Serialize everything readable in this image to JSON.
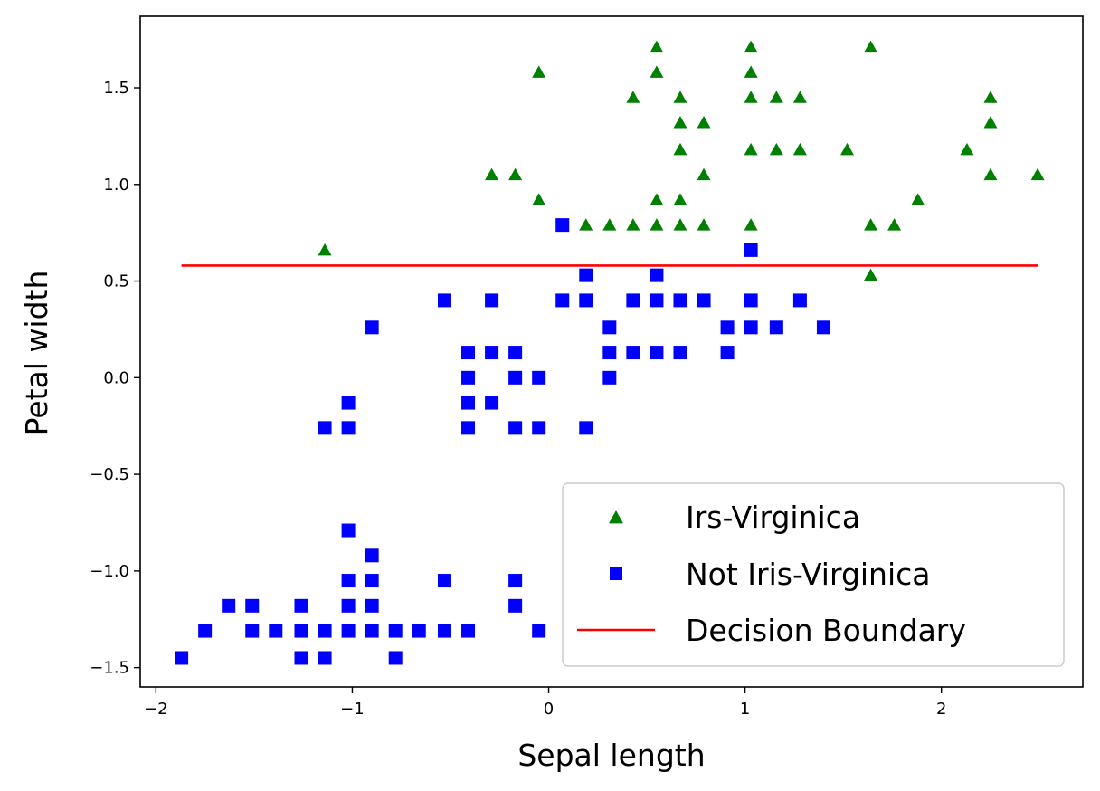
{
  "chart_data": {
    "type": "scatter",
    "title": "",
    "xlabel": "Sepal length",
    "ylabel": "Petal width",
    "xlim": [
      -2.08,
      2.72
    ],
    "ylim": [
      -1.6,
      1.87
    ],
    "grid": false,
    "legend_position": "lower-right",
    "x_ticks": [
      -2,
      -1,
      0,
      1,
      2
    ],
    "x_tick_labels": [
      "−2",
      "−1",
      "0",
      "1",
      "2"
    ],
    "y_ticks": [
      -1.5,
      -1.0,
      -0.5,
      0.0,
      0.5,
      1.0,
      1.5
    ],
    "y_tick_labels": [
      "−1.5",
      "−1.0",
      "−0.5",
      "0.0",
      "0.5",
      "1.0",
      "1.5"
    ],
    "series": [
      {
        "name": "Irs-Virginica",
        "marker": "triangle",
        "color": "#008000",
        "points": [
          [
            0.55,
            1.71
          ],
          [
            1.03,
            1.71
          ],
          [
            1.64,
            1.71
          ],
          [
            -0.05,
            1.58
          ],
          [
            0.55,
            1.58
          ],
          [
            1.03,
            1.58
          ],
          [
            0.43,
            1.45
          ],
          [
            0.67,
            1.45
          ],
          [
            1.03,
            1.45
          ],
          [
            1.16,
            1.45
          ],
          [
            1.28,
            1.45
          ],
          [
            2.25,
            1.45
          ],
          [
            0.67,
            1.32
          ],
          [
            0.79,
            1.32
          ],
          [
            2.25,
            1.32
          ],
          [
            0.67,
            1.18
          ],
          [
            1.03,
            1.18
          ],
          [
            1.16,
            1.18
          ],
          [
            1.28,
            1.18
          ],
          [
            1.52,
            1.18
          ],
          [
            2.13,
            1.18
          ],
          [
            -0.29,
            1.05
          ],
          [
            -0.17,
            1.05
          ],
          [
            0.79,
            1.05
          ],
          [
            2.25,
            1.05
          ],
          [
            2.49,
            1.05
          ],
          [
            -0.05,
            0.92
          ],
          [
            0.55,
            0.92
          ],
          [
            0.67,
            0.92
          ],
          [
            1.88,
            0.92
          ],
          [
            0.19,
            0.79
          ],
          [
            0.31,
            0.79
          ],
          [
            0.43,
            0.79
          ],
          [
            0.55,
            0.79
          ],
          [
            0.67,
            0.79
          ],
          [
            0.79,
            0.79
          ],
          [
            1.03,
            0.79
          ],
          [
            1.64,
            0.79
          ],
          [
            1.76,
            0.79
          ],
          [
            -1.14,
            0.66
          ],
          [
            1.64,
            0.53
          ]
        ]
      },
      {
        "name": "Not Iris-Virginica",
        "marker": "square",
        "color": "#0000ff",
        "points": [
          [
            0.07,
            0.79
          ],
          [
            1.03,
            0.66
          ],
          [
            0.19,
            0.53
          ],
          [
            0.55,
            0.53
          ],
          [
            -0.53,
            0.4
          ],
          [
            -0.29,
            0.4
          ],
          [
            0.07,
            0.4
          ],
          [
            0.19,
            0.4
          ],
          [
            0.43,
            0.4
          ],
          [
            0.55,
            0.4
          ],
          [
            0.67,
            0.4
          ],
          [
            0.79,
            0.4
          ],
          [
            1.03,
            0.4
          ],
          [
            1.28,
            0.4
          ],
          [
            -0.9,
            0.26
          ],
          [
            0.31,
            0.26
          ],
          [
            0.91,
            0.26
          ],
          [
            1.03,
            0.26
          ],
          [
            1.16,
            0.26
          ],
          [
            1.4,
            0.26
          ],
          [
            -0.41,
            0.13
          ],
          [
            -0.29,
            0.13
          ],
          [
            -0.17,
            0.13
          ],
          [
            0.31,
            0.13
          ],
          [
            0.43,
            0.13
          ],
          [
            0.55,
            0.13
          ],
          [
            0.67,
            0.13
          ],
          [
            0.91,
            0.13
          ],
          [
            -0.41,
            0.0
          ],
          [
            -0.17,
            0.0
          ],
          [
            -0.05,
            0.0
          ],
          [
            0.31,
            0.0
          ],
          [
            -1.02,
            -0.13
          ],
          [
            -0.41,
            -0.13
          ],
          [
            -0.29,
            -0.13
          ],
          [
            -1.14,
            -0.26
          ],
          [
            -1.02,
            -0.26
          ],
          [
            -0.41,
            -0.26
          ],
          [
            -0.17,
            -0.26
          ],
          [
            -0.05,
            -0.26
          ],
          [
            0.19,
            -0.26
          ],
          [
            -1.02,
            -0.79
          ],
          [
            -0.9,
            -0.92
          ],
          [
            -1.02,
            -1.05
          ],
          [
            -0.9,
            -1.05
          ],
          [
            -0.53,
            -1.05
          ],
          [
            -0.17,
            -1.05
          ],
          [
            -1.63,
            -1.18
          ],
          [
            -1.51,
            -1.18
          ],
          [
            -1.26,
            -1.18
          ],
          [
            -1.02,
            -1.18
          ],
          [
            -0.9,
            -1.18
          ],
          [
            -0.17,
            -1.18
          ],
          [
            -1.75,
            -1.31
          ],
          [
            -1.51,
            -1.31
          ],
          [
            -1.39,
            -1.31
          ],
          [
            -1.26,
            -1.31
          ],
          [
            -1.14,
            -1.31
          ],
          [
            -1.02,
            -1.31
          ],
          [
            -0.9,
            -1.31
          ],
          [
            -0.78,
            -1.31
          ],
          [
            -0.66,
            -1.31
          ],
          [
            -0.53,
            -1.31
          ],
          [
            -0.41,
            -1.31
          ],
          [
            -0.05,
            -1.31
          ],
          [
            -1.87,
            -1.45
          ],
          [
            -1.26,
            -1.45
          ],
          [
            -1.14,
            -1.45
          ],
          [
            -0.78,
            -1.45
          ]
        ]
      },
      {
        "name": "Decision Boundary",
        "marker": "line",
        "color": "#ff0000",
        "points": [
          [
            -1.87,
            0.58
          ],
          [
            2.49,
            0.58
          ]
        ]
      }
    ]
  }
}
